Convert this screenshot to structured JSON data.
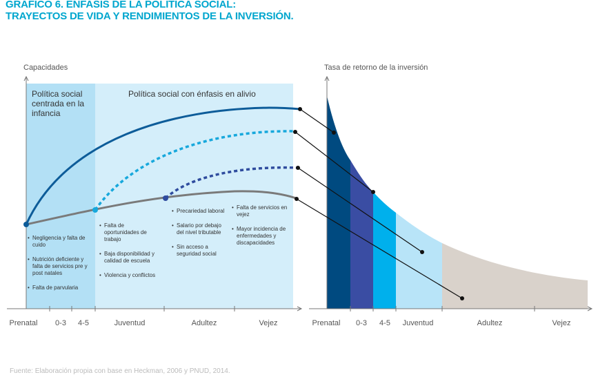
{
  "title": {
    "line1": "GRÁFICO 6. ÉNFASIS DE LA POLÍTICA SOCIAL:",
    "line2": "TRAYECTOS DE VIDA Y RENDIMIENTOS DE LA INVERSIÓN."
  },
  "left_panel": {
    "y_axis_title": "Capacidades",
    "region_infancia": "Política social centrada en la infancia",
    "region_alivio": "Política social con énfasis en alivio",
    "x_ticks": [
      "Prenatal",
      "0-3",
      "4-5",
      "Juventud",
      "Adultez",
      "Vejez"
    ],
    "bullets_col1": [
      "Negligencia y falta de cuido",
      "Nutrición deficiente y falta de servicios pre y post natales",
      "Falta de parvularia"
    ],
    "bullets_col2": [
      "Falta de oportunidades de trabajo",
      "Baja disponibilidad y calidad de escuela",
      "Violencia y conflictos"
    ],
    "bullets_col3": [
      "Precariedad laboral",
      "Salario por debajo del nivel tributable",
      "Sin acceso a seguridad social"
    ],
    "bullets_col4": [
      "Falta de servicios en vejez",
      "Mayor incidencia de enfermedades y discapacidades"
    ]
  },
  "right_panel": {
    "y_axis_title": "Tasa de retorno de la inversión",
    "x_ticks": [
      "Prenatal",
      "0-3",
      "4-5",
      "Juventud",
      "Adultez",
      "Vejez"
    ]
  },
  "colors": {
    "title": "#00a6ce",
    "region_infancia": "#b3e0f5",
    "region_alivio": "#d4eefa",
    "curve_top": "#0d5c99",
    "curve_dotted_light": "#17a8dc",
    "curve_dotted_dark": "#2f4c9e",
    "curve_base": "#7a7a7a",
    "band_prenatal": "#004a80",
    "band_0_3": "#3a4da3",
    "band_4_5": "#00b0ec",
    "band_juventud": "#b8e4f8",
    "band_adultez": "#d9d2cb"
  },
  "source": "Fuente: Elaboración propia con base en Heckman, 2006 y PNUD, 2014."
}
